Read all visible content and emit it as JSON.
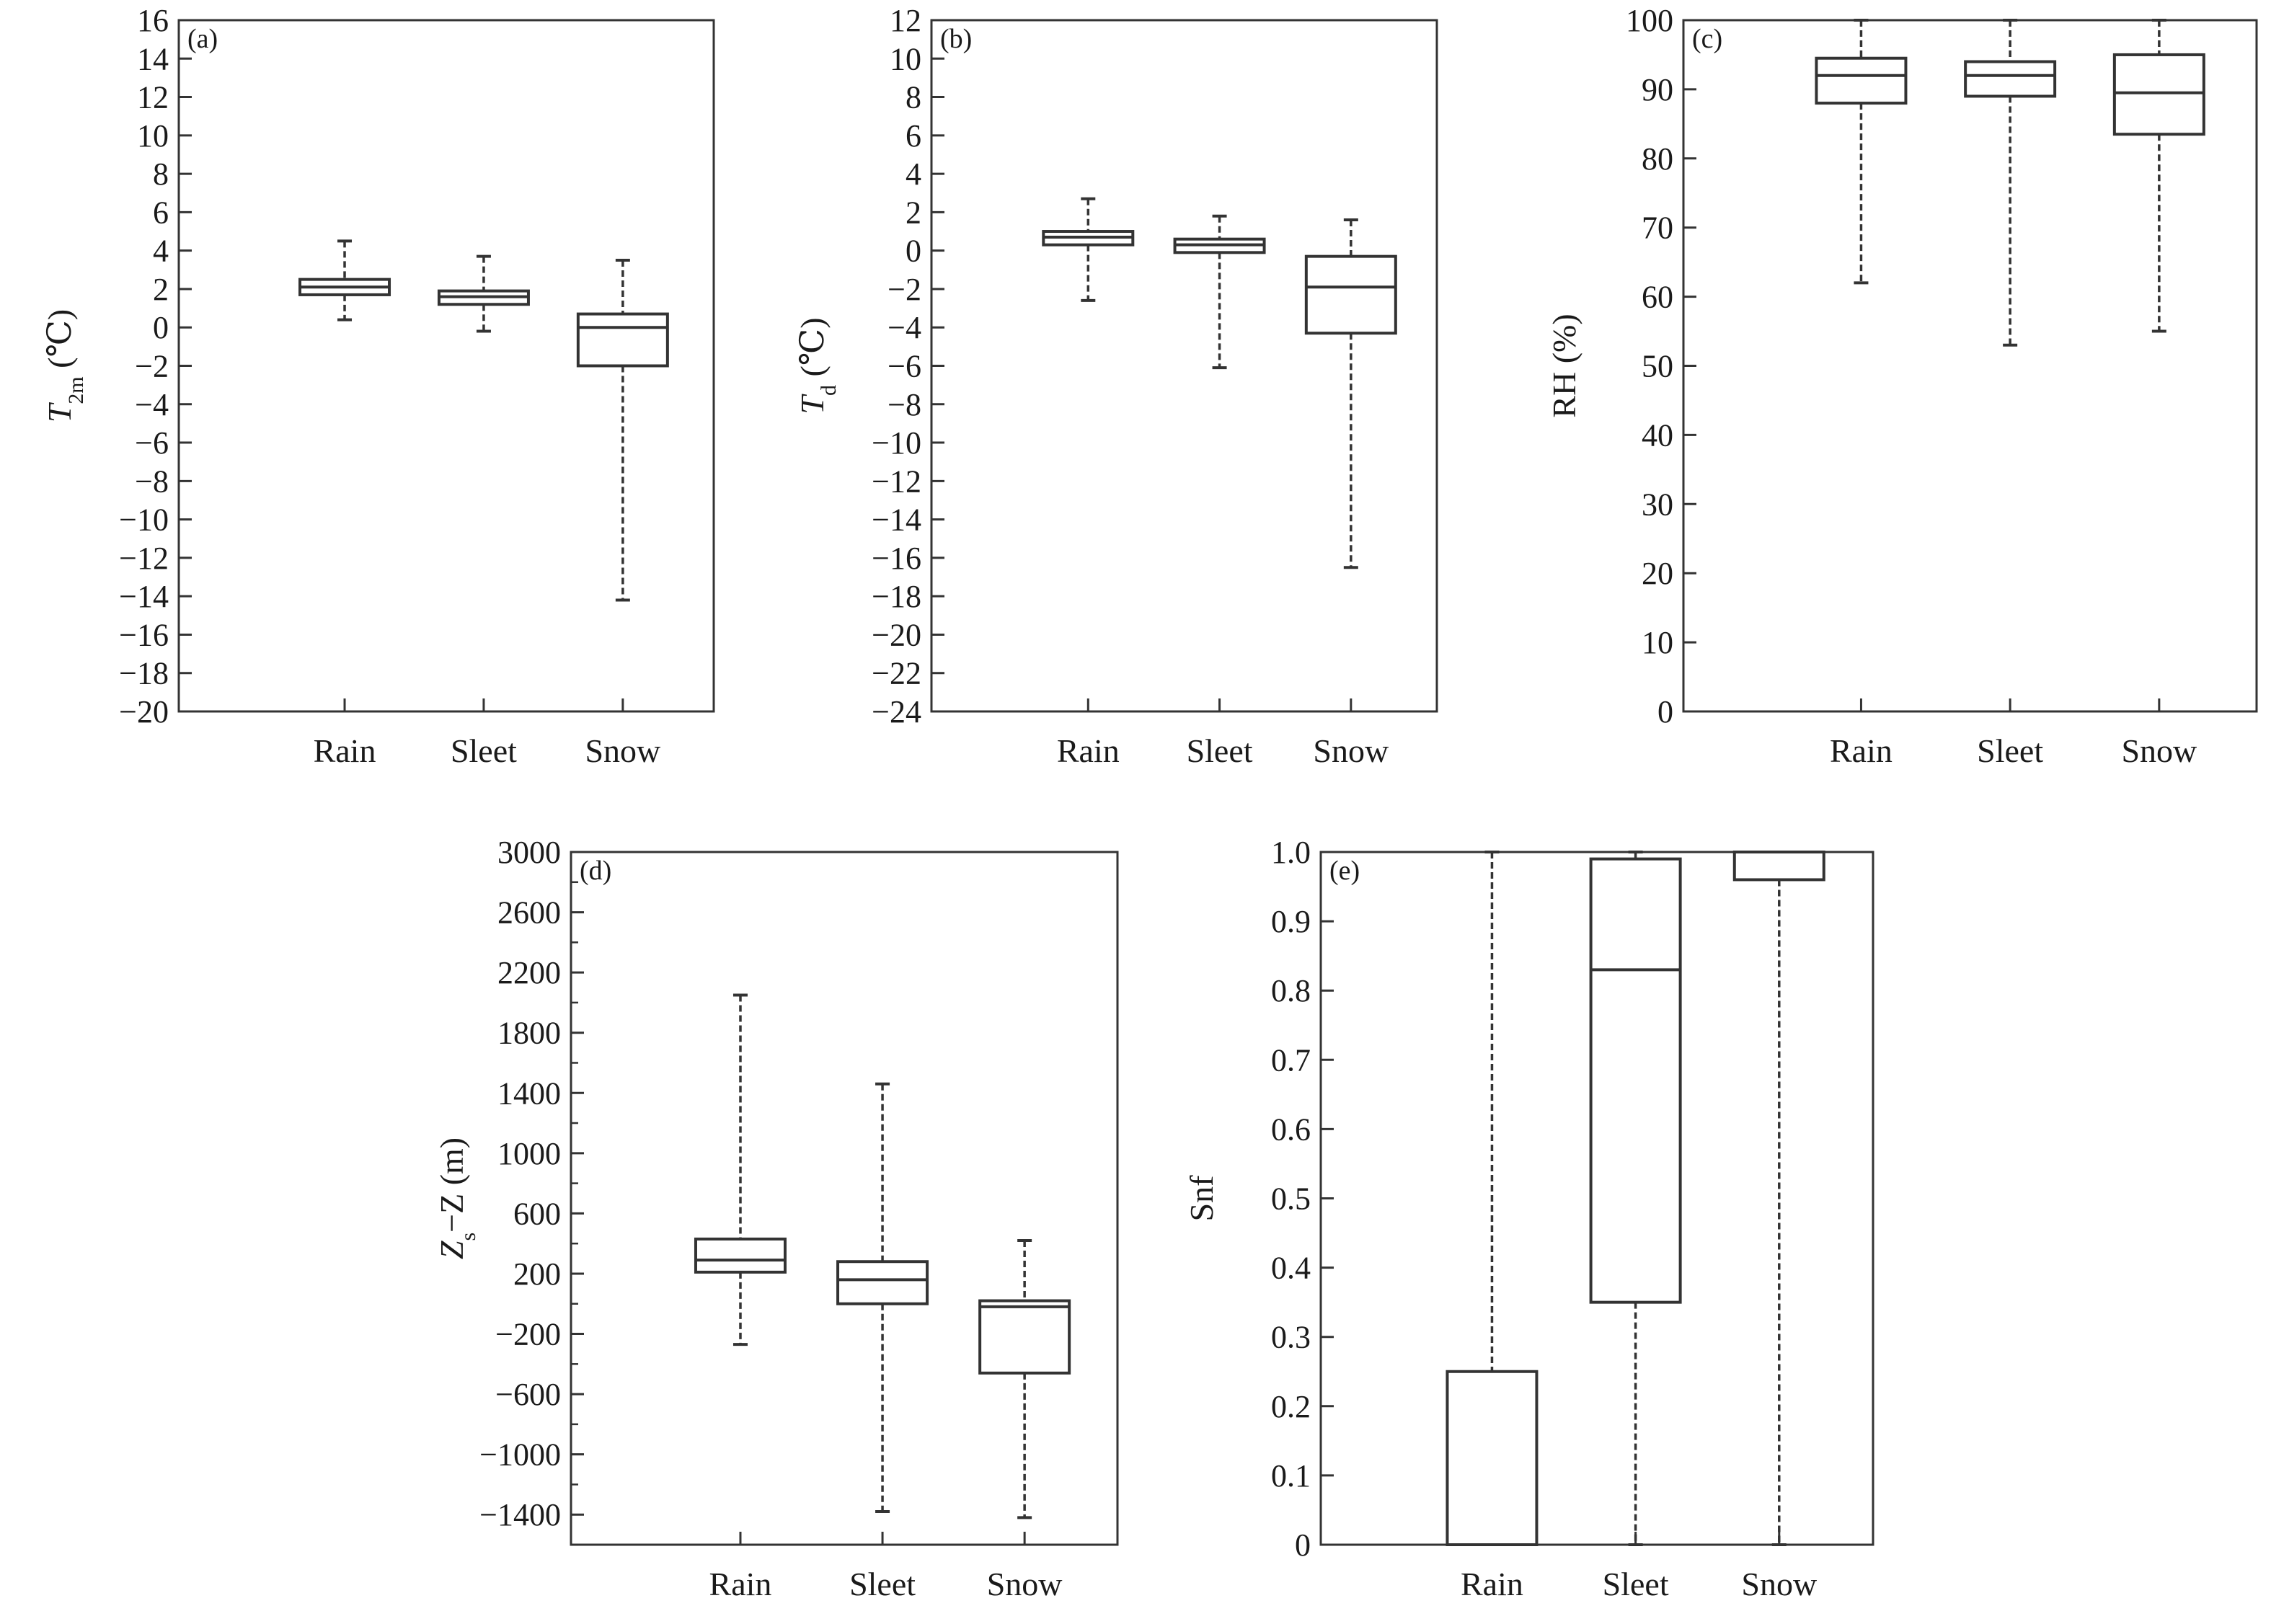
{
  "chart_data": [
    {
      "type": "box",
      "panel_label": "(a)",
      "ylabel": {
        "main": "T",
        "sub": "2m",
        "unit": " (℃)"
      },
      "ylim": [
        -20,
        16
      ],
      "yticks": [
        16,
        14,
        12,
        10,
        8,
        6,
        4,
        2,
        0,
        -2,
        -4,
        -6,
        -8,
        -10,
        -12,
        -14,
        -16,
        -18,
        -20
      ],
      "ytick_labels": [
        "16",
        "14",
        "12",
        "10",
        "8",
        "6",
        "4",
        "2",
        "0",
        "−2",
        "−4",
        "−6",
        "−8",
        "−10",
        "−12",
        "−14",
        "−16",
        "−18",
        "−20"
      ],
      "categories": [
        "Rain",
        "Sleet",
        "Snow"
      ],
      "boxes": [
        {
          "min": 0.4,
          "q1": 1.7,
          "median": 2.1,
          "q3": 2.5,
          "max": 4.5
        },
        {
          "min": -0.2,
          "q1": 1.2,
          "median": 1.6,
          "q3": 1.9,
          "max": 3.7
        },
        {
          "min": -14.2,
          "q1": -2.0,
          "median": 0.0,
          "q3": 0.7,
          "max": 3.5
        }
      ]
    },
    {
      "type": "box",
      "panel_label": "(b)",
      "ylabel": {
        "main": "T",
        "sub": "d",
        "unit": " (℃)"
      },
      "ylim": [
        -24,
        12
      ],
      "yticks": [
        12,
        10,
        8,
        6,
        4,
        2,
        0,
        -2,
        -4,
        -6,
        -8,
        -10,
        -12,
        -14,
        -16,
        -18,
        -20,
        -22,
        -24
      ],
      "ytick_labels": [
        "12",
        "10",
        "8",
        "6",
        "4",
        "2",
        "0",
        "−2",
        "−4",
        "−6",
        "−8",
        "−10",
        "−12",
        "−14",
        "−16",
        "−18",
        "−20",
        "−22",
        "−24"
      ],
      "categories": [
        "Rain",
        "Sleet",
        "Snow"
      ],
      "boxes": [
        {
          "min": -2.6,
          "q1": 0.3,
          "median": 0.7,
          "q3": 1.0,
          "max": 2.7
        },
        {
          "min": -6.1,
          "q1": -0.1,
          "median": 0.3,
          "q3": 0.6,
          "max": 1.8
        },
        {
          "min": -16.5,
          "q1": -4.3,
          "median": -1.9,
          "q3": -0.3,
          "max": 1.6
        }
      ]
    },
    {
      "type": "box",
      "panel_label": "(c)",
      "ylabel": {
        "main": "RH",
        "sub": "",
        "unit": " (%)"
      },
      "ylim": [
        0,
        100
      ],
      "yticks": [
        100,
        90,
        80,
        70,
        60,
        50,
        40,
        30,
        20,
        10,
        0
      ],
      "ytick_labels": [
        "100",
        "90",
        "80",
        "70",
        "60",
        "50",
        "40",
        "30",
        "20",
        "10",
        "0"
      ],
      "categories": [
        "Rain",
        "Sleet",
        "Snow"
      ],
      "boxes": [
        {
          "min": 62,
          "q1": 88,
          "median": 92,
          "q3": 94.5,
          "max": 100
        },
        {
          "min": 53,
          "q1": 89,
          "median": 92,
          "q3": 94,
          "max": 100
        },
        {
          "min": 55,
          "q1": 83.5,
          "median": 89.5,
          "q3": 95,
          "max": 100
        }
      ]
    },
    {
      "type": "box",
      "panel_label": "(d)",
      "ylabel": {
        "main": "Z",
        "sub": "s",
        "unit": "−Z (m)"
      },
      "ylim": [
        -1600,
        3000
      ],
      "yticks": [
        3000,
        2600,
        2200,
        1800,
        1400,
        1000,
        600,
        200,
        -200,
        -600,
        -1000,
        -1400
      ],
      "ytick_labels": [
        "3000",
        "2600",
        "2200",
        "1800",
        "1400",
        "1000",
        "600",
        "200",
        "−200",
        "−600",
        "−1000",
        "−1400"
      ],
      "minor_step": 200,
      "categories": [
        "Rain",
        "Sleet",
        "Snow"
      ],
      "boxes": [
        {
          "min": -270,
          "q1": 210,
          "median": 290,
          "q3": 430,
          "max": 2050
        },
        {
          "min": -1380,
          "q1": 0,
          "median": 160,
          "q3": 280,
          "max": 1460
        },
        {
          "min": -1420,
          "q1": -460,
          "median": -20,
          "q3": 20,
          "max": 420
        }
      ]
    },
    {
      "type": "box",
      "panel_label": "(e)",
      "ylabel": {
        "main": "Snf",
        "sub": "",
        "unit": ""
      },
      "ylim": [
        0,
        1.0
      ],
      "yticks": [
        1.0,
        0.9,
        0.8,
        0.7,
        0.6,
        0.5,
        0.4,
        0.3,
        0.2,
        0.1,
        0
      ],
      "ytick_labels": [
        "1.0",
        "0.9",
        "0.8",
        "0.7",
        "0.6",
        "0.5",
        "0.4",
        "0.3",
        "0.2",
        "0.1",
        "0"
      ],
      "categories": [
        "Rain",
        "Sleet",
        "Snow"
      ],
      "boxes": [
        {
          "min": 0,
          "q1": 0,
          "median": 0,
          "q3": 0.25,
          "max": 1.0
        },
        {
          "min": 0,
          "q1": 0.35,
          "median": 0.83,
          "q3": 0.99,
          "max": 1.0
        },
        {
          "min": 0,
          "q1": 0.96,
          "median": 1.0,
          "q3": 1.0,
          "max": 1.0
        }
      ]
    }
  ]
}
